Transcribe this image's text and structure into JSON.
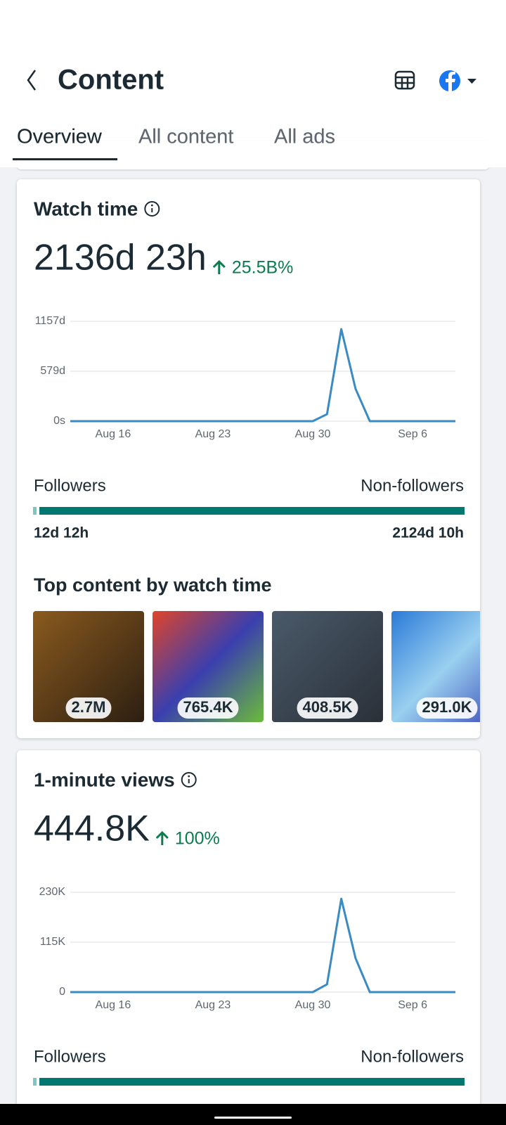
{
  "header": {
    "title": "Content"
  },
  "tabs": [
    "Overview",
    "All content",
    "All ads"
  ],
  "cards": [
    {
      "title": "Watch time",
      "value": "2136d 23h",
      "change": "25.5B%",
      "chart": {
        "type": "line",
        "color": "#3a8ac4",
        "categories": [
          null,
          null,
          null,
          "Aug 16",
          null,
          null,
          null,
          null,
          null,
          null,
          "Aug 23",
          null,
          null,
          null,
          null,
          null,
          null,
          "Aug 30",
          null,
          null,
          null,
          null,
          null,
          null,
          "Sep 6",
          null,
          null,
          null
        ],
        "values": [
          0,
          0,
          0,
          0,
          0,
          0,
          0,
          0,
          0,
          0,
          0,
          0,
          0,
          0,
          0,
          0,
          0,
          0,
          81,
          1067,
          375,
          0,
          0,
          0,
          0,
          0,
          0,
          0
        ],
        "ylim": [
          0,
          1157
        ],
        "yticks": [
          {
            "value": 0,
            "label": "0s"
          },
          {
            "value": 579,
            "label": "579d"
          },
          {
            "value": 1157,
            "label": "1157d"
          }
        ],
        "grid": true
      },
      "split": {
        "left_label": "Followers",
        "right_label": "Non-followers",
        "left_value": "12d 12h",
        "right_value": "2124d 10h"
      },
      "top_title": "Top content by watch time",
      "top": [
        "2.7M",
        "765.4K",
        "408.5K",
        "291.0K"
      ]
    },
    {
      "title": "1-minute views",
      "value": "444.8K",
      "change": "100%",
      "chart": {
        "type": "line",
        "color": "#3a8ac4",
        "categories": [
          null,
          null,
          null,
          "Aug 16",
          null,
          null,
          null,
          null,
          null,
          null,
          "Aug 23",
          null,
          null,
          null,
          null,
          null,
          null,
          "Aug 30",
          null,
          null,
          null,
          null,
          null,
          null,
          "Sep 6",
          null,
          null,
          null
        ],
        "values": [
          0,
          0,
          0,
          0,
          0,
          0,
          0,
          0,
          0,
          0,
          0,
          0,
          0,
          0,
          0,
          0,
          0,
          0,
          18000,
          215000,
          78000,
          0,
          0,
          0,
          0,
          0,
          0,
          0
        ],
        "ylim": [
          0,
          230000
        ],
        "yticks": [
          0,
          {
            "value": 115000,
            "label": "115K"
          },
          {
            "value": 230000,
            "label": "230K"
          }
        ],
        "grid": true
      },
      "split": {
        "left_label": "Followers",
        "right_label": "Non-followers"
      }
    }
  ]
}
